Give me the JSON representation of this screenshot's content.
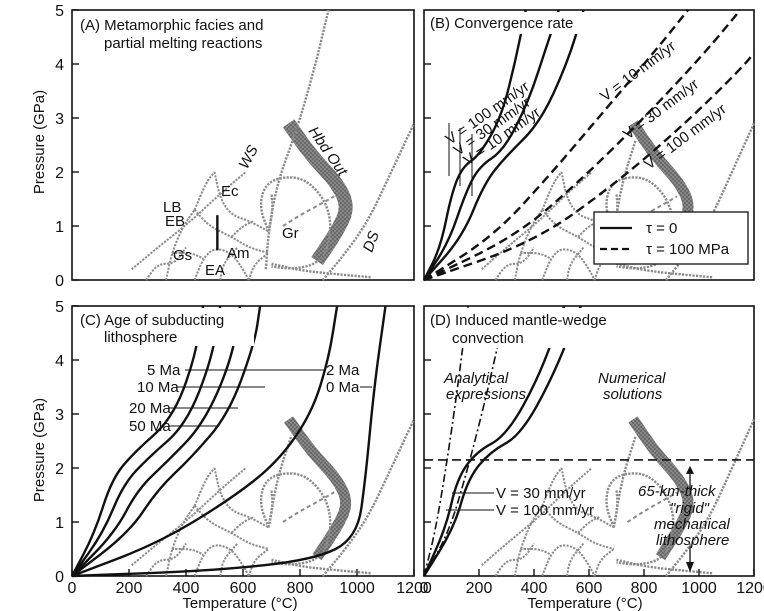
{
  "figure": {
    "ylabel": "Pressure (GPa)",
    "xlabel": "Temperature (°C)"
  },
  "chart_data": [
    {
      "panel": "A",
      "type": "line",
      "title": "(A) Metamorphic facies and partial melting reactions",
      "title_lines": [
        "(A) Metamorphic facies and",
        "partial melting reactions"
      ],
      "ylabel": "Pressure (GPa)",
      "xlabel": "",
      "xlim": [
        0,
        1200
      ],
      "ylim": [
        0,
        5
      ],
      "y_ticks": [
        "0",
        "1",
        "2",
        "3",
        "4",
        "5"
      ],
      "x_ticks": [],
      "region_labels": [
        "LB",
        "EB",
        "Ec",
        "Gs",
        "Am",
        "EA",
        "Gr",
        "WS",
        "DS",
        "Hbd Out"
      ],
      "series": [
        {
          "name": "WS",
          "points": [
            [
              680,
              0.2
            ],
            [
              690,
              0.9
            ],
            [
              720,
              1.8
            ],
            [
              790,
              2.8
            ],
            [
              850,
              3.9
            ],
            [
              900,
              5.0
            ]
          ]
        },
        {
          "name": "DS",
          "points": [
            [
              880,
              0.0
            ],
            [
              960,
              0.5
            ],
            [
              1040,
              1.1
            ],
            [
              1120,
              2.0
            ],
            [
              1200,
              2.9
            ]
          ]
        },
        {
          "name": "Hbd Out",
          "points": [
            [
              860,
              0.3
            ],
            [
              930,
              0.9
            ],
            [
              980,
              1.4
            ],
            [
              940,
              1.9
            ],
            [
              840,
              2.4
            ],
            [
              760,
              3.0
            ]
          ]
        }
      ]
    },
    {
      "panel": "B",
      "type": "line",
      "title": "(B) Convergence rate",
      "xlim": [
        0,
        1200
      ],
      "ylim": [
        0,
        5
      ],
      "y_ticks": [],
      "x_ticks": [],
      "legend": [
        "τ = 0",
        "τ = 100 MPa"
      ],
      "legend_position": "bottom-right",
      "annotations": [
        "V = 100 mm/yr",
        "V = 30 mm/yr",
        "V = 10 mm/yr",
        "V = 10 mm/yr",
        "V = 30 mm/yr",
        "V = 100 mm/yr"
      ],
      "series": [
        {
          "name": "V = 100 mm/yr",
          "style": "solid",
          "points": [
            [
              0,
              0
            ],
            [
              60,
              0.6
            ],
            [
              100,
              1.6
            ],
            [
              140,
              2.1
            ],
            [
              200,
              2.3
            ],
            [
              280,
              3.0
            ],
            [
              330,
              4.0
            ],
            [
              370,
              5.0
            ]
          ]
        },
        {
          "name": "V = 30 mm/yr",
          "style": "solid",
          "points": [
            [
              0,
              0
            ],
            [
              90,
              0.7
            ],
            [
              150,
              1.6
            ],
            [
              200,
              2.1
            ],
            [
              290,
              2.4
            ],
            [
              380,
              3.3
            ],
            [
              450,
              4.4
            ],
            [
              490,
              5.0
            ]
          ]
        },
        {
          "name": "V = 10 mm/yr",
          "style": "solid",
          "points": [
            [
              0,
              0
            ],
            [
              140,
              0.8
            ],
            [
              220,
              1.8
            ],
            [
              300,
              2.3
            ],
            [
              420,
              2.9
            ],
            [
              520,
              4.0
            ],
            [
              580,
              5.0
            ]
          ]
        },
        {
          "name": "V = 10 mm/yr",
          "style": "dashed",
          "points": [
            [
              0,
              0
            ],
            [
              250,
              0.8
            ],
            [
              450,
              1.9
            ],
            [
              650,
              3.1
            ],
            [
              850,
              4.3
            ],
            [
              960,
              5.0
            ]
          ]
        },
        {
          "name": "V = 30 mm/yr",
          "style": "dashed",
          "points": [
            [
              0,
              0
            ],
            [
              330,
              0.8
            ],
            [
              560,
              1.8
            ],
            [
              800,
              3.0
            ],
            [
              1020,
              4.2
            ],
            [
              1150,
              5.0
            ]
          ]
        },
        {
          "name": "V = 100 mm/yr",
          "style": "dashed",
          "points": [
            [
              0,
              0
            ],
            [
              400,
              0.7
            ],
            [
              700,
              1.8
            ],
            [
              950,
              2.9
            ],
            [
              1150,
              3.9
            ],
            [
              1200,
              4.2
            ]
          ]
        }
      ]
    },
    {
      "panel": "C",
      "type": "line",
      "title": "(C) Age of subducting lithosphere",
      "title_lines": [
        "(C) Age of subducting",
        "lithosphere"
      ],
      "ylabel": "Pressure (GPa)",
      "xlabel": "Temperature (°C)",
      "xlim": [
        0,
        1200
      ],
      "ylim": [
        0,
        5
      ],
      "y_ticks": [
        "0",
        "1",
        "2",
        "3",
        "4",
        "5"
      ],
      "x_ticks": [
        "0",
        "200",
        "400",
        "600",
        "800",
        "1000",
        "1200"
      ],
      "annotations": [
        "5 Ma",
        "10 Ma",
        "20 Ma",
        "50 Ma",
        "2 Ma",
        "0 Ma"
      ],
      "series": [
        {
          "name": "50 Ma",
          "points": [
            [
              0,
              0
            ],
            [
              80,
              0.8
            ],
            [
              140,
              1.8
            ],
            [
              220,
              2.3
            ],
            [
              350,
              2.9
            ],
            [
              430,
              4.0
            ],
            [
              460,
              5.0
            ]
          ]
        },
        {
          "name": "20 Ma",
          "points": [
            [
              0,
              0
            ],
            [
              110,
              0.8
            ],
            [
              180,
              1.7
            ],
            [
              270,
              2.2
            ],
            [
              400,
              2.8
            ],
            [
              490,
              4.0
            ],
            [
              520,
              5.0
            ]
          ]
        },
        {
          "name": "10 Ma",
          "points": [
            [
              0,
              0
            ],
            [
              150,
              0.8
            ],
            [
              230,
              1.6
            ],
            [
              330,
              2.1
            ],
            [
              460,
              2.8
            ],
            [
              560,
              4.0
            ],
            [
              590,
              5.0
            ]
          ]
        },
        {
          "name": "5 Ma",
          "points": [
            [
              0,
              0
            ],
            [
              200,
              0.8
            ],
            [
              300,
              1.6
            ],
            [
              420,
              2.2
            ],
            [
              550,
              3.0
            ],
            [
              640,
              4.3
            ],
            [
              660,
              5.0
            ]
          ]
        },
        {
          "name": "2 Ma",
          "points": [
            [
              0,
              0
            ],
            [
              300,
              0.6
            ],
            [
              550,
              1.4
            ],
            [
              720,
              2.1
            ],
            [
              840,
              3.0
            ],
            [
              900,
              4.0
            ],
            [
              930,
              5.0
            ]
          ]
        },
        {
          "name": "0 Ma",
          "points": [
            [
              0,
              0
            ],
            [
              500,
              0.1
            ],
            [
              850,
              0.3
            ],
            [
              1000,
              0.7
            ],
            [
              1030,
              1.8
            ],
            [
              1060,
              3.5
            ],
            [
              1100,
              5.0
            ]
          ]
        }
      ]
    },
    {
      "panel": "D",
      "type": "line",
      "title": "(D) Induced mantle-wedge convection",
      "title_lines": [
        "(D) Induced mantle-wedge",
        "convection"
      ],
      "xlabel": "Temperature (°C)",
      "xlim": [
        0,
        1200
      ],
      "ylim": [
        0,
        5
      ],
      "y_ticks": [],
      "x_ticks": [
        "0",
        "200",
        "400",
        "600",
        "800",
        "1000",
        "1200"
      ],
      "annotations": [
        "Analytical expressions",
        "Numerical solutions",
        "V = 30 mm/yr",
        "V = 100 mm/yr",
        "65-km-thick \"rigid\" mechanical lithosphere"
      ],
      "annotation_lines": {
        "analytical": [
          "Analytical",
          "expressions"
        ],
        "numerical": [
          "Numerical",
          "solutions"
        ],
        "lithosphere": [
          "65-km-thick",
          "\"rigid\"",
          "mechanical",
          "lithosphere"
        ]
      },
      "lithosphere_base_gpa": 2.15,
      "series": [
        {
          "name": "Analytical V = 100 mm/yr",
          "style": "dashdot",
          "points": [
            [
              0,
              0
            ],
            [
              40,
              0.8
            ],
            [
              80,
              2.0
            ],
            [
              120,
              3.4
            ],
            [
              160,
              5.0
            ]
          ]
        },
        {
          "name": "Analytical V = 30 mm/yr",
          "style": "dashdot",
          "points": [
            [
              0,
              0
            ],
            [
              90,
              0.8
            ],
            [
              160,
              2.0
            ],
            [
              230,
              3.4
            ],
            [
              300,
              5.0
            ]
          ]
        },
        {
          "name": "V = 100 mm/yr",
          "style": "solid",
          "points": [
            [
              0,
              0
            ],
            [
              80,
              0.9
            ],
            [
              120,
              1.8
            ],
            [
              190,
              2.3
            ],
            [
              300,
              2.6
            ],
            [
              420,
              3.7
            ],
            [
              510,
              5.0
            ]
          ]
        },
        {
          "name": "V = 30 mm/yr",
          "style": "solid",
          "points": [
            [
              0,
              0
            ],
            [
              110,
              0.9
            ],
            [
              160,
              1.8
            ],
            [
              240,
              2.3
            ],
            [
              350,
              2.6
            ],
            [
              470,
              3.7
            ],
            [
              570,
              5.0
            ]
          ]
        }
      ]
    }
  ]
}
